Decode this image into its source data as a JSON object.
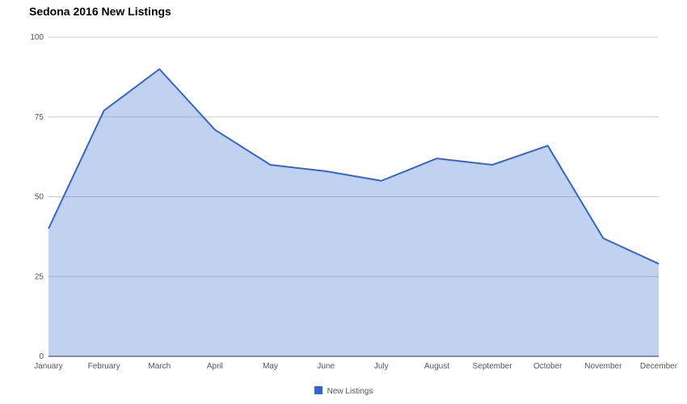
{
  "chart_data": {
    "type": "area",
    "title": "Sedona 2016 New Listings",
    "categories": [
      "January",
      "February",
      "March",
      "April",
      "May",
      "June",
      "July",
      "August",
      "September",
      "October",
      "November",
      "December"
    ],
    "series": [
      {
        "name": "New Listings",
        "values": [
          40,
          77,
          90,
          71,
          60,
          58,
          55,
          62,
          60,
          66,
          37,
          29
        ],
        "color": "#3366cc"
      }
    ],
    "ylim": [
      0,
      100
    ],
    "yticks": [
      "0",
      "25",
      "50",
      "75",
      "100"
    ],
    "ytick_values": [
      0,
      25,
      50,
      75,
      100
    ],
    "grid": true,
    "legend_position": "bottom"
  }
}
